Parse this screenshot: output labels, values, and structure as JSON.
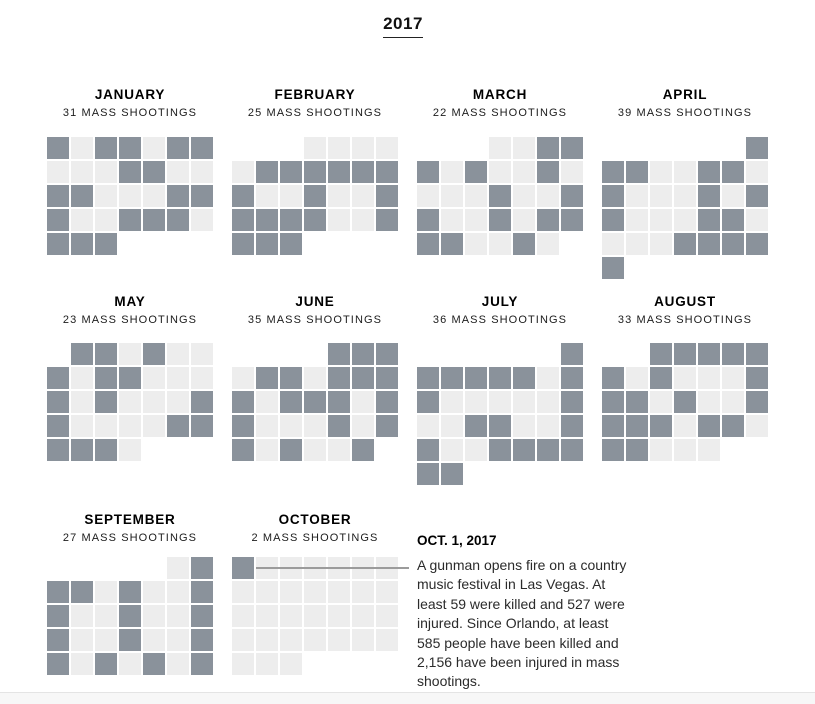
{
  "chart_data": {
    "type": "heatmap",
    "title": "2017",
    "legend": "dark cell = calendar day with at least one mass shooting",
    "colors": {
      "shooting_day": "#8a929b",
      "no_shooting_day": "#ededed",
      "leader_line": "#9b9b9b"
    },
    "months": [
      {
        "name": "JANUARY",
        "label": "31 MASS SHOOTINGS",
        "shootings": 31,
        "col": 0,
        "row": 0,
        "first_weekday": 0,
        "num_days": 31,
        "shooting_days": [
          1,
          3,
          4,
          6,
          7,
          11,
          12,
          15,
          16,
          20,
          21,
          22,
          25,
          26,
          27,
          29,
          30,
          31
        ]
      },
      {
        "name": "FEBRUARY",
        "label": "25 MASS SHOOTINGS",
        "shootings": 25,
        "col": 1,
        "row": 0,
        "first_weekday": 3,
        "num_days": 28,
        "shooting_days": [
          6,
          7,
          8,
          9,
          10,
          11,
          12,
          15,
          18,
          19,
          20,
          21,
          22,
          25,
          26,
          27,
          28
        ]
      },
      {
        "name": "MARCH",
        "label": "22 MASS SHOOTINGS",
        "shootings": 22,
        "col": 2,
        "row": 0,
        "first_weekday": 3,
        "num_days": 31,
        "shooting_days": [
          3,
          4,
          5,
          7,
          10,
          15,
          18,
          19,
          22,
          24,
          25,
          26,
          27,
          30
        ]
      },
      {
        "name": "APRIL",
        "label": "39 MASS SHOOTINGS",
        "shootings": 39,
        "col": 3,
        "row": 0,
        "first_weekday": 6,
        "num_days": 30,
        "shooting_days": [
          1,
          2,
          3,
          6,
          7,
          9,
          13,
          15,
          16,
          20,
          21,
          26,
          27,
          28,
          29,
          30
        ]
      },
      {
        "name": "MAY",
        "label": "23 MASS SHOOTINGS",
        "shootings": 23,
        "col": 0,
        "row": 1,
        "first_weekday": 1,
        "num_days": 31,
        "shooting_days": [
          1,
          2,
          4,
          7,
          9,
          10,
          14,
          16,
          20,
          21,
          26,
          27,
          28,
          29,
          30
        ]
      },
      {
        "name": "JUNE",
        "label": "35 MASS SHOOTINGS",
        "shootings": 35,
        "col": 1,
        "row": 1,
        "first_weekday": 4,
        "num_days": 30,
        "shooting_days": [
          1,
          2,
          3,
          5,
          6,
          8,
          9,
          10,
          11,
          13,
          14,
          15,
          17,
          18,
          22,
          24,
          25,
          27,
          30
        ]
      },
      {
        "name": "JULY",
        "label": "36 MASS SHOOTINGS",
        "shootings": 36,
        "col": 2,
        "row": 1,
        "first_weekday": 6,
        "num_days": 31,
        "shooting_days": [
          1,
          2,
          3,
          4,
          5,
          6,
          8,
          9,
          15,
          18,
          19,
          22,
          23,
          26,
          27,
          28,
          29,
          30,
          31
        ]
      },
      {
        "name": "AUGUST",
        "label": "33 MASS SHOOTINGS",
        "shootings": 33,
        "col": 3,
        "row": 1,
        "first_weekday": 2,
        "num_days": 31,
        "shooting_days": [
          1,
          2,
          3,
          4,
          5,
          6,
          8,
          12,
          13,
          14,
          16,
          19,
          20,
          21,
          22,
          24,
          25,
          27,
          28
        ]
      },
      {
        "name": "SEPTEMBER",
        "label": "27 MASS SHOOTINGS",
        "shootings": 27,
        "col": 0,
        "row": 2,
        "first_weekday": 5,
        "num_days": 30,
        "shooting_days": [
          2,
          3,
          4,
          6,
          9,
          10,
          13,
          16,
          17,
          20,
          23,
          24,
          26,
          28,
          30
        ]
      },
      {
        "name": "OCTOBER",
        "label": "2 MASS SHOOTINGS",
        "shootings": 2,
        "col": 1,
        "row": 2,
        "first_weekday": 0,
        "num_days": 31,
        "shooting_days": [
          1
        ]
      }
    ],
    "annotation": {
      "date": "OCT. 1, 2017",
      "text": "A gunman opens fire on a country music festival in Las Vegas. At least 59 were killed and 527 were injured. Since Orlando, at least 585 people have been killed and 2,156 have been injured in mass shootings."
    }
  },
  "layout": {
    "column_lefts": [
      47,
      232,
      417,
      602
    ],
    "header_tops": [
      87,
      294,
      512
    ],
    "grid_tops": [
      137,
      343,
      557
    ]
  }
}
